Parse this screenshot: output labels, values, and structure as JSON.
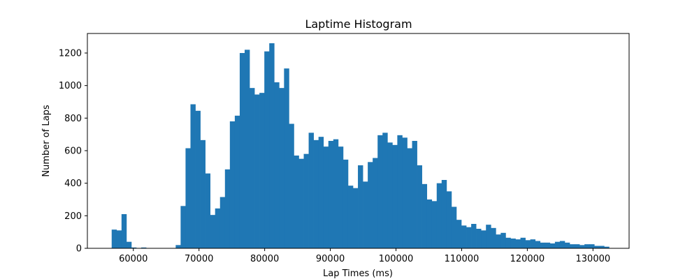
{
  "chart_data": {
    "type": "bar",
    "title": "Laptime Histogram",
    "xlabel": "Lap Times (ms)",
    "ylabel": "Number of Laps",
    "xlim": [
      53000,
      135500
    ],
    "ylim": [
      0,
      1320
    ],
    "xticks": [
      60000,
      70000,
      80000,
      90000,
      100000,
      110000,
      120000,
      130000
    ],
    "yticks": [
      0,
      200,
      400,
      600,
      800,
      1000,
      1200
    ],
    "grid": false,
    "bar_color": "#1f77b4",
    "bin_start": 56700,
    "bin_width": 750,
    "values": [
      115,
      110,
      210,
      40,
      5,
      0,
      5,
      0,
      0,
      0,
      0,
      0,
      0,
      20,
      260,
      615,
      885,
      845,
      665,
      460,
      205,
      245,
      315,
      485,
      780,
      815,
      1200,
      1220,
      985,
      945,
      955,
      1210,
      1260,
      1020,
      985,
      1105,
      765,
      570,
      550,
      580,
      710,
      665,
      685,
      625,
      660,
      670,
      625,
      545,
      385,
      370,
      510,
      410,
      530,
      555,
      695,
      710,
      650,
      635,
      695,
      680,
      615,
      660,
      510,
      395,
      300,
      290,
      400,
      420,
      350,
      255,
      175,
      140,
      130,
      150,
      120,
      110,
      145,
      125,
      85,
      95,
      65,
      60,
      55,
      65,
      50,
      55,
      45,
      35,
      35,
      30,
      40,
      45,
      35,
      25,
      25,
      20,
      25,
      25,
      15,
      15,
      10
    ]
  }
}
